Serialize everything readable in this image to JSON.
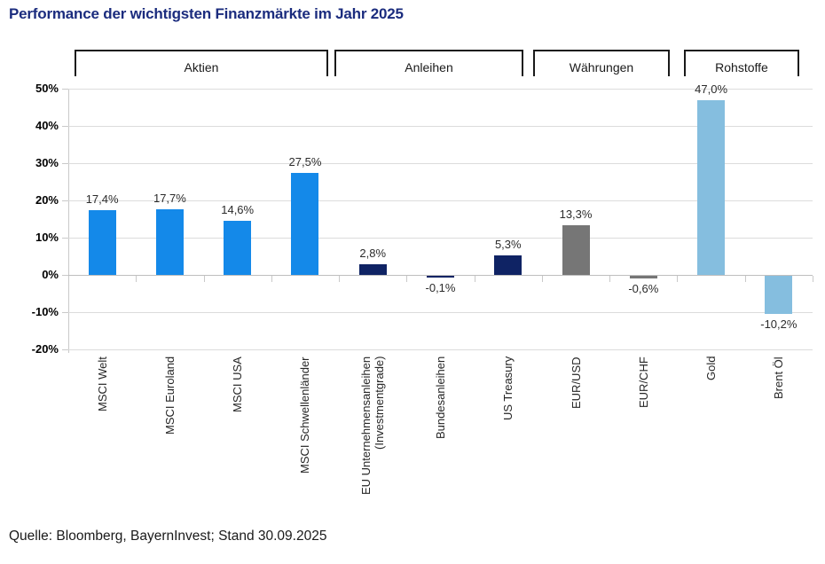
{
  "page": {
    "title": "Performance der wichtigsten Finanzmärkte im Jahr 2025",
    "source": "Quelle: Bloomberg, BayernInvest; Stand 30.09.2025"
  },
  "colors": {
    "title_blue": "#1b2c7e",
    "aktien_blue": "#1489e9",
    "anleihen_navy": "#0f2364",
    "waehrungen_gray": "#767676",
    "rohstoffe_lightblue": "#85bedf",
    "gridline": "#dcdcdc",
    "axis": "#c9c9c9",
    "bracket_line": "#1a1a1a"
  },
  "chart_data": {
    "type": "bar",
    "title": "Performance der wichtigsten Finanzmärkte im Jahr 2025",
    "xlabel": "",
    "ylabel": "",
    "ylim": [
      -20,
      50
    ],
    "ytick_step": 10,
    "grid": true,
    "legend": false,
    "value_label_format": "german decimal comma, percent",
    "yticks": [
      {
        "label": "50%",
        "value": 50
      },
      {
        "label": "40%",
        "value": 40
      },
      {
        "label": "30%",
        "value": 30
      },
      {
        "label": "20%",
        "value": 20
      },
      {
        "label": "10%",
        "value": 10
      },
      {
        "label": "0%",
        "value": 0
      },
      {
        "label": "-10%",
        "value": -10
      },
      {
        "label": "-20%",
        "value": -20
      }
    ],
    "groups": [
      {
        "label": "Aktien",
        "color": "#1489e9",
        "bars": [
          {
            "category": "MSCI Welt",
            "value": 17.4,
            "value_label": "17,4%"
          },
          {
            "category": "MSCI Euroland",
            "value": 17.7,
            "value_label": "17,7%"
          },
          {
            "category": "MSCI USA",
            "value": 14.6,
            "value_label": "14,6%"
          },
          {
            "category": "MSCI Schwellenländer",
            "value": 27.5,
            "value_label": "27,5%"
          }
        ]
      },
      {
        "label": "Anleihen",
        "color": "#0f2364",
        "bars": [
          {
            "category": "EU Unternehmensanleihen\n(Investmentgrade)",
            "value": 2.8,
            "value_label": "2,8%"
          },
          {
            "category": "Bundesanleihen",
            "value": -0.1,
            "value_label": "-0,1%"
          },
          {
            "category": "US Treasury",
            "value": 5.3,
            "value_label": "5,3%"
          }
        ]
      },
      {
        "label": "Währungen",
        "color": "#767676",
        "bars": [
          {
            "category": "EUR/USD",
            "value": 13.3,
            "value_label": "13,3%"
          },
          {
            "category": "EUR/CHF",
            "value": -0.6,
            "value_label": "-0,6%"
          }
        ]
      },
      {
        "label": "Rohstoffe",
        "color": "#85bedf",
        "bars": [
          {
            "category": "Gold",
            "value": 47.0,
            "value_label": "47,0%"
          },
          {
            "category": "Brent Öl",
            "value": -10.2,
            "value_label": "-10,2%"
          }
        ]
      }
    ]
  }
}
